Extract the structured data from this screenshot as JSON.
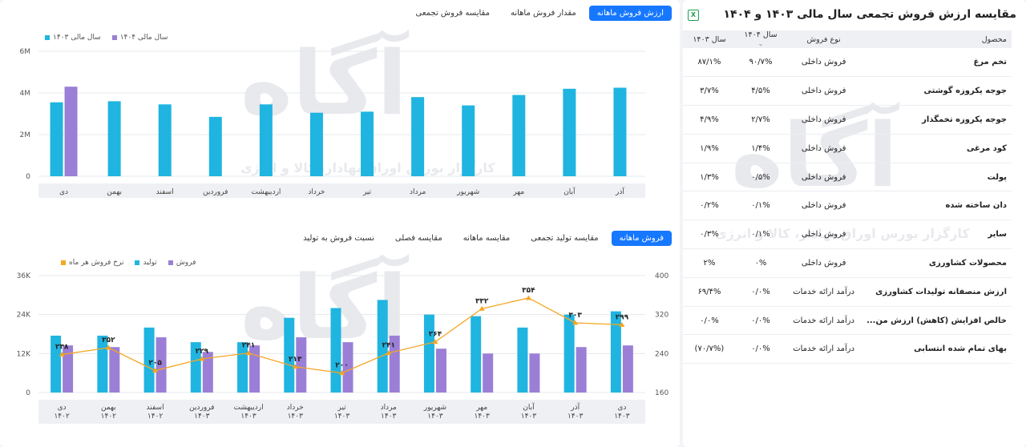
{
  "top_panel": {
    "tabs": [
      "ارزش فروش ماهانه",
      "مقدار فروش ماهانه",
      "مقایسه فروش تجمعی"
    ],
    "active_tab": 0,
    "legend": [
      {
        "label": "سال مالی ۱۴۰۴",
        "color": "#9b7fd6"
      },
      {
        "label": "سال مالی ۱۴۰۳",
        "color": "#1fb5e0"
      }
    ],
    "y_ticks": [
      "6M",
      "4M",
      "2M",
      "0"
    ]
  },
  "bottom_panel": {
    "tabs": [
      "فروش ماهانه",
      "مقایسه تولید تجمعی",
      "مقایسه ماهانه",
      "مقایسه فصلی",
      "نسبت فروش به تولید"
    ],
    "active_tab": 0,
    "legend": [
      {
        "label": "فروش",
        "color": "#9b7fd6"
      },
      {
        "label": "تولید",
        "color": "#1fb5e0"
      },
      {
        "label": "نرخ فروش هر ماه",
        "color": "#f5a623"
      }
    ],
    "y_left_ticks": [
      "36K",
      "24K",
      "12K",
      "0"
    ],
    "y_right_ticks": [
      "400",
      "320",
      "240",
      "160"
    ]
  },
  "chart_data": [
    {
      "type": "bar",
      "categories": [
        "دی",
        "بهمن",
        "اسفند",
        "فروردین",
        "اردیبهشت",
        "خرداد",
        "تیر",
        "مرداد",
        "شهریور",
        "مهر",
        "آبان",
        "آذر"
      ],
      "series": [
        {
          "name": "سال مالی ۱۴۰۳",
          "values": [
            3.55,
            3.6,
            3.45,
            2.85,
            3.45,
            3.05,
            3.1,
            3.8,
            3.4,
            3.9,
            4.2,
            4.25
          ]
        },
        {
          "name": "سال مالی ۱۴۰۴",
          "values": [
            4.3,
            0,
            0,
            0,
            0,
            0,
            0,
            0,
            0,
            0,
            0,
            0
          ]
        }
      ],
      "ylim": [
        0,
        6
      ]
    },
    {
      "type": "bar",
      "categories": [
        "دی ۱۴۰۲",
        "بهمن ۱۴۰۲",
        "اسفند ۱۴۰۲",
        "فروردین ۱۴۰۳",
        "اردیبهشت ۱۴۰۳",
        "خرداد ۱۴۰۳",
        "تیر ۱۴۰۳",
        "مرداد ۱۴۰۳",
        "شهریور ۱۴۰۳",
        "مهر ۱۴۰۳",
        "آبان ۱۴۰۳",
        "آذر ۱۴۰۳",
        "دی ۱۴۰۳"
      ],
      "series": [
        {
          "name": "تولید",
          "values": [
            17.5,
            17.5,
            20,
            15.5,
            15.5,
            23,
            26,
            28.5,
            24,
            23.5,
            20,
            24,
            25
          ]
        },
        {
          "name": "فروش",
          "values": [
            14.5,
            14,
            17,
            12.5,
            14.5,
            17,
            15.5,
            17.5,
            13.5,
            12,
            12,
            14,
            14.5
          ]
        },
        {
          "name": "نرخ فروش هر ماه",
          "axis": "right",
          "values": [
            238,
            252,
            205,
            229,
            241,
            213,
            200,
            241,
            264,
            332,
            354,
            303,
            299
          ],
          "labels": [
            "۲۳۸",
            "۲۵۲",
            "۲۰۵",
            "۲۲۹",
            "۲۴۱",
            "۲۱۳",
            "۲۰۰",
            "۲۴۱",
            "۲۶۴",
            "۳۳۲",
            "۳۵۴",
            "۳۰۳",
            "۲۹۹"
          ]
        }
      ],
      "ylim": [
        0,
        36
      ],
      "y2lim": [
        160,
        400
      ]
    }
  ],
  "table_panel": {
    "title": "مقایسه ارزش فروش تجمعی سال مالی ۱۴۰۳ و ۱۴۰۴",
    "export_icon": "excel-icon",
    "headers": {
      "product": "محصول",
      "type": "نوع فروش",
      "y1404": "سال ۱۴۰۴",
      "y1403": "سال ۱۴۰۳"
    },
    "rows": [
      {
        "product": "تخم مرغ",
        "type": "فروش داخلی",
        "y1404": "۹۰/۷%",
        "y1403": "۸۷/۱%"
      },
      {
        "product": "جوجه یکروزه گوشتی",
        "type": "فروش داخلی",
        "y1404": "۴/۵%",
        "y1403": "۳/۷%"
      },
      {
        "product": "جوجه یکروزه تخمگذار",
        "type": "فروش داخلی",
        "y1404": "۲/۷%",
        "y1403": "۴/۹%"
      },
      {
        "product": "کود مرغی",
        "type": "فروش داخلی",
        "y1404": "۱/۴%",
        "y1403": "۱/۹%"
      },
      {
        "product": "پولت",
        "type": "فروش داخلی",
        "y1404": "۰/۵%",
        "y1403": "۱/۳%"
      },
      {
        "product": "دان ساخته شده",
        "type": "فروش داخلی",
        "y1404": "۰/۱%",
        "y1403": "۰/۲%"
      },
      {
        "product": "سایر",
        "type": "فروش داخلی",
        "y1404": "۰/۱%",
        "y1403": "۰/۳%"
      },
      {
        "product": "محصولات کشاورزی",
        "type": "فروش داخلی",
        "y1404": "۰%",
        "y1403": "۲%"
      },
      {
        "product": "ارزش منصفانه تولیدات کشاورزی",
        "type": "درآمد ارائه خدمات",
        "y1404": "۰/۰%",
        "y1403": "۶۹/۴%"
      },
      {
        "product": "خالص افزایش (کاهش) ارزش من...",
        "type": "درآمد ارائه خدمات",
        "y1404": "۰/۰%",
        "y1403": "۰/۰%"
      },
      {
        "product": "بهای تمام شده انتسابی",
        "type": "درآمد ارائه خدمات",
        "y1404": "۰/۰%",
        "y1403": "(۷۰/۷%)"
      }
    ]
  },
  "watermark": {
    "brand": "آگاه",
    "tagline": "کارگزار بورس اوراق بهادار، کالا و انرژی"
  }
}
